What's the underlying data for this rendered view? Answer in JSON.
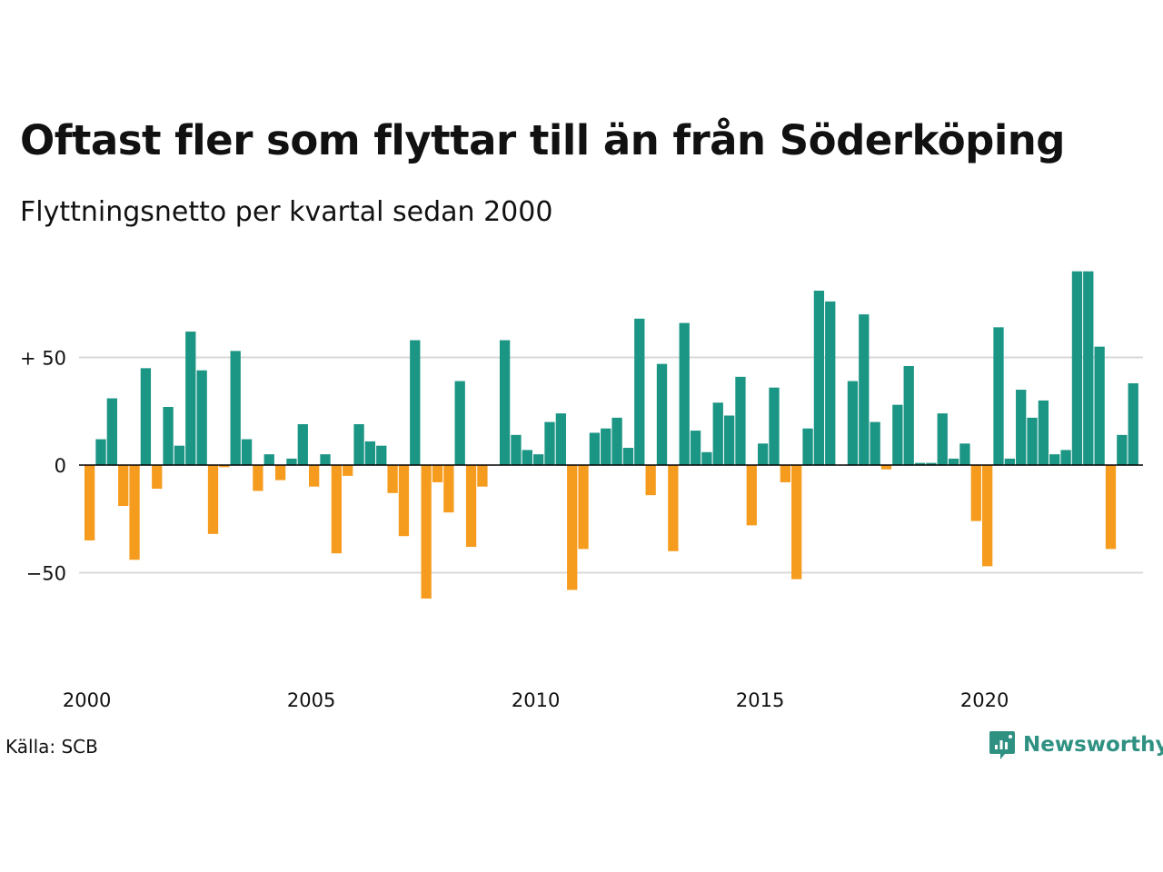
{
  "title": "Oftast fler som flyttar till än från Söderköping",
  "subtitle": "Flyttningsnetto per kvartal sedan 2000",
  "source": "Källa: SCB",
  "brand": {
    "name": "Newsworthy",
    "color": "#2f9182",
    "icon": "newsworthy-logo-icon"
  },
  "colors": {
    "positive": "#1b9584",
    "negative": "#f59c1f",
    "grid": "#d9d9d9",
    "axis": "#000000"
  },
  "chart_data": {
    "type": "bar",
    "title": "Oftast fler som flyttar till än från Söderköping",
    "subtitle": "Flyttningsnetto per kvartal sedan 2000",
    "xlabel": "",
    "ylabel": "",
    "ylim": [
      -70,
      92
    ],
    "y_ticks": [
      {
        "value": 50,
        "label": "+ 50"
      },
      {
        "value": 0,
        "label": "0"
      },
      {
        "value": -50,
        "label": "−50"
      }
    ],
    "x_ticks": [
      "2000",
      "2005",
      "2010",
      "2015",
      "2020"
    ],
    "grid": true,
    "legend": "none",
    "categories": [
      "2000 K1",
      "2000 K2",
      "2000 K3",
      "2000 K4",
      "2001 K1",
      "2001 K2",
      "2001 K3",
      "2001 K4",
      "2002 K1",
      "2002 K2",
      "2002 K3",
      "2002 K4",
      "2003 K1",
      "2003 K2",
      "2003 K3",
      "2003 K4",
      "2004 K1",
      "2004 K2",
      "2004 K3",
      "2004 K4",
      "2005 K1",
      "2005 K2",
      "2005 K3",
      "2005 K4",
      "2006 K1",
      "2006 K2",
      "2006 K3",
      "2006 K4",
      "2007 K1",
      "2007 K2",
      "2007 K3",
      "2007 K4",
      "2008 K1",
      "2008 K2",
      "2008 K3",
      "2008 K4",
      "2009 K1",
      "2009 K2",
      "2009 K3",
      "2009 K4",
      "2010 K1",
      "2010 K2",
      "2010 K3",
      "2010 K4",
      "2011 K1",
      "2011 K2",
      "2011 K3",
      "2011 K4",
      "2012 K1",
      "2012 K2",
      "2012 K3",
      "2012 K4",
      "2013 K1",
      "2013 K2",
      "2013 K3",
      "2013 K4",
      "2014 K1",
      "2014 K2",
      "2014 K3",
      "2014 K4",
      "2015 K1",
      "2015 K2",
      "2015 K3",
      "2015 K4",
      "2016 K1",
      "2016 K2",
      "2016 K3",
      "2016 K4",
      "2017 K1",
      "2017 K2",
      "2017 K3",
      "2017 K4",
      "2018 K1",
      "2018 K2",
      "2018 K3",
      "2018 K4",
      "2019 K1",
      "2019 K2",
      "2019 K3",
      "2019 K4",
      "2020 K1",
      "2020 K2",
      "2020 K3",
      "2020 K4",
      "2021 K1",
      "2021 K2",
      "2021 K3",
      "2021 K4",
      "2022 K1",
      "2022 K2",
      "2022 K3",
      "2022 K4",
      "2023 K1",
      "2023 K2",
      "2023 K3",
      "2023 K4"
    ],
    "values": [
      -35,
      12,
      31,
      -19,
      -44,
      45,
      -11,
      27,
      9,
      62,
      44,
      -32,
      -1,
      53,
      12,
      -12,
      5,
      -7,
      3,
      19,
      -10,
      5,
      -41,
      -5,
      19,
      11,
      9,
      -13,
      -33,
      58,
      -62,
      -8,
      -22,
      39,
      -38,
      -10,
      0,
      58,
      14,
      7,
      5,
      20,
      24,
      -58,
      -39,
      15,
      17,
      22,
      8,
      68,
      -14,
      47,
      -40,
      66,
      16,
      6,
      29,
      23,
      41,
      -28,
      10,
      36,
      -8,
      -53,
      17,
      81,
      76,
      0,
      39,
      70,
      20,
      -2,
      28,
      46,
      1,
      1,
      24,
      3,
      10,
      -26,
      -47,
      64,
      3,
      35,
      22,
      30,
      5,
      7,
      90,
      90,
      55,
      -39,
      14,
      38,
      0,
      0
    ]
  }
}
